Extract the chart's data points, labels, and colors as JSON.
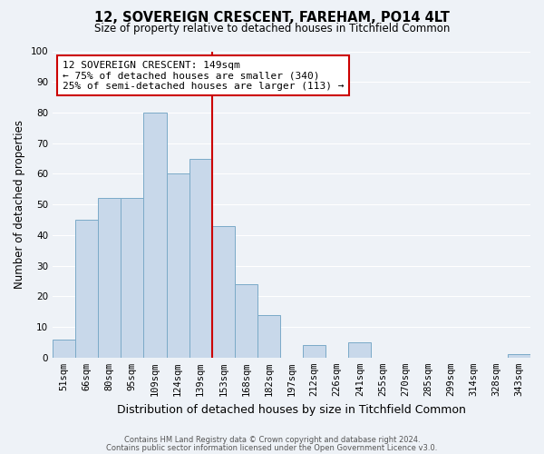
{
  "title": "12, SOVEREIGN CRESCENT, FAREHAM, PO14 4LT",
  "subtitle": "Size of property relative to detached houses in Titchfield Common",
  "xlabel": "Distribution of detached houses by size in Titchfield Common",
  "ylabel": "Number of detached properties",
  "bin_labels": [
    "51sqm",
    "66sqm",
    "80sqm",
    "95sqm",
    "109sqm",
    "124sqm",
    "139sqm",
    "153sqm",
    "168sqm",
    "182sqm",
    "197sqm",
    "212sqm",
    "226sqm",
    "241sqm",
    "255sqm",
    "270sqm",
    "285sqm",
    "299sqm",
    "314sqm",
    "328sqm",
    "343sqm"
  ],
  "bar_heights": [
    6,
    45,
    52,
    52,
    80,
    60,
    65,
    43,
    24,
    14,
    0,
    4,
    0,
    5,
    0,
    0,
    0,
    0,
    0,
    0,
    1
  ],
  "bar_color": "#c8d8ea",
  "bar_edge_color": "#7baac8",
  "vline_color": "#cc0000",
  "annotation_line1": "12 SOVEREIGN CRESCENT: 149sqm",
  "annotation_line2": "← 75% of detached houses are smaller (340)",
  "annotation_line3": "25% of semi-detached houses are larger (113) →",
  "annotation_box_color": "#ffffff",
  "annotation_box_edge": "#cc0000",
  "ylim": [
    0,
    100
  ],
  "yticks": [
    0,
    10,
    20,
    30,
    40,
    50,
    60,
    70,
    80,
    90,
    100
  ],
  "footer1": "Contains HM Land Registry data © Crown copyright and database right 2024.",
  "footer2": "Contains public sector information licensed under the Open Government Licence v3.0.",
  "bg_color": "#eef2f7",
  "grid_color": "#ffffff",
  "title_fontsize": 10.5,
  "subtitle_fontsize": 8.5,
  "ylabel_fontsize": 8.5,
  "xlabel_fontsize": 9,
  "tick_fontsize": 7.5,
  "footer_fontsize": 6,
  "ann_fontsize": 8
}
